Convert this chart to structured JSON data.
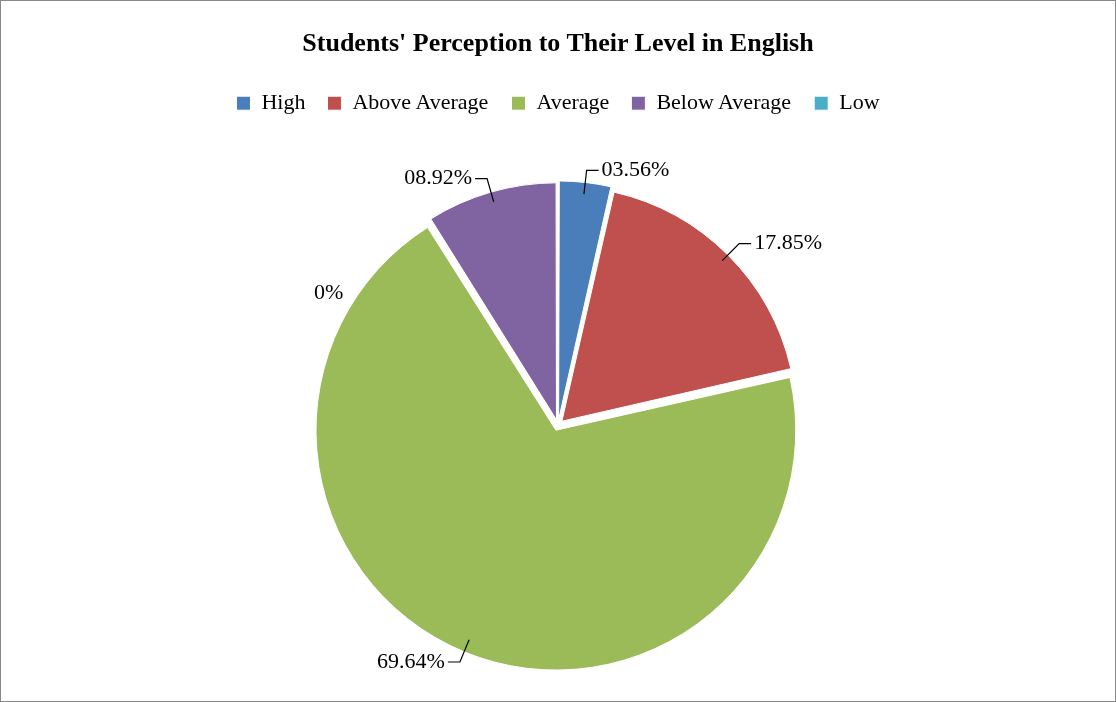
{
  "chart_data": {
    "type": "pie",
    "title": "Students' Perception to Their Level in English",
    "categories": [
      "High",
      "Above Average",
      "Average",
      "Below Average",
      "Low"
    ],
    "values": [
      3.56,
      17.85,
      69.64,
      8.92,
      0
    ],
    "colors": [
      "#4a7ebb",
      "#c0504d",
      "#9bbb59",
      "#8064a2",
      "#4bacc6"
    ],
    "value_labels": [
      "03.56%",
      "17.85%",
      "69.64%",
      "08.92%",
      "0%"
    ],
    "legend": "top"
  }
}
